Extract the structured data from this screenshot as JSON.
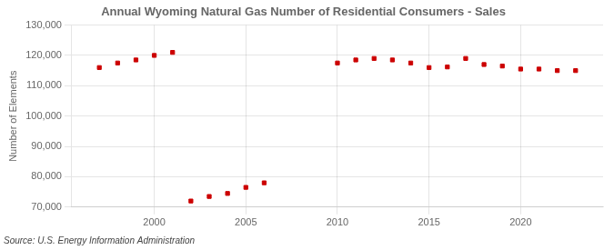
{
  "chart_data": {
    "type": "scatter",
    "title": "Annual Wyoming Natural Gas Number of Residential Consumers - Sales",
    "ylabel": "Number of Elements",
    "annotations": [
      "Source: U.S. Energy Information Administration"
    ],
    "x": [
      1997,
      1998,
      1999,
      2000,
      2001,
      2002,
      2003,
      2004,
      2005,
      2006,
      2010,
      2011,
      2012,
      2013,
      2014,
      2015,
      2016,
      2017,
      2018,
      2019,
      2020,
      2021,
      2022,
      2023
    ],
    "values": [
      116000,
      117500,
      118500,
      120000,
      121000,
      72000,
      73500,
      74500,
      76500,
      78000,
      117500,
      118500,
      119000,
      118500,
      117500,
      116000,
      116200,
      119000,
      117000,
      116500,
      115500,
      115500,
      115000,
      115000
    ],
    "color": "#cc0000",
    "marker": "square",
    "xlim": [
      1995.5,
      2024.5
    ],
    "xticks": [
      2000,
      2005,
      2010,
      2015,
      2020
    ],
    "ylim": [
      70000,
      130000
    ],
    "yticks": [
      {
        "value": 70000,
        "label": "70,000"
      },
      {
        "value": 80000,
        "label": "80,000"
      },
      {
        "value": 90000,
        "label": "90,000"
      },
      {
        "value": 100000,
        "label": "100,000"
      },
      {
        "value": 110000,
        "label": "110,000"
      },
      {
        "value": 120000,
        "label": "120,000"
      },
      {
        "value": 130000,
        "label": "130,000"
      }
    ],
    "grid": true
  }
}
